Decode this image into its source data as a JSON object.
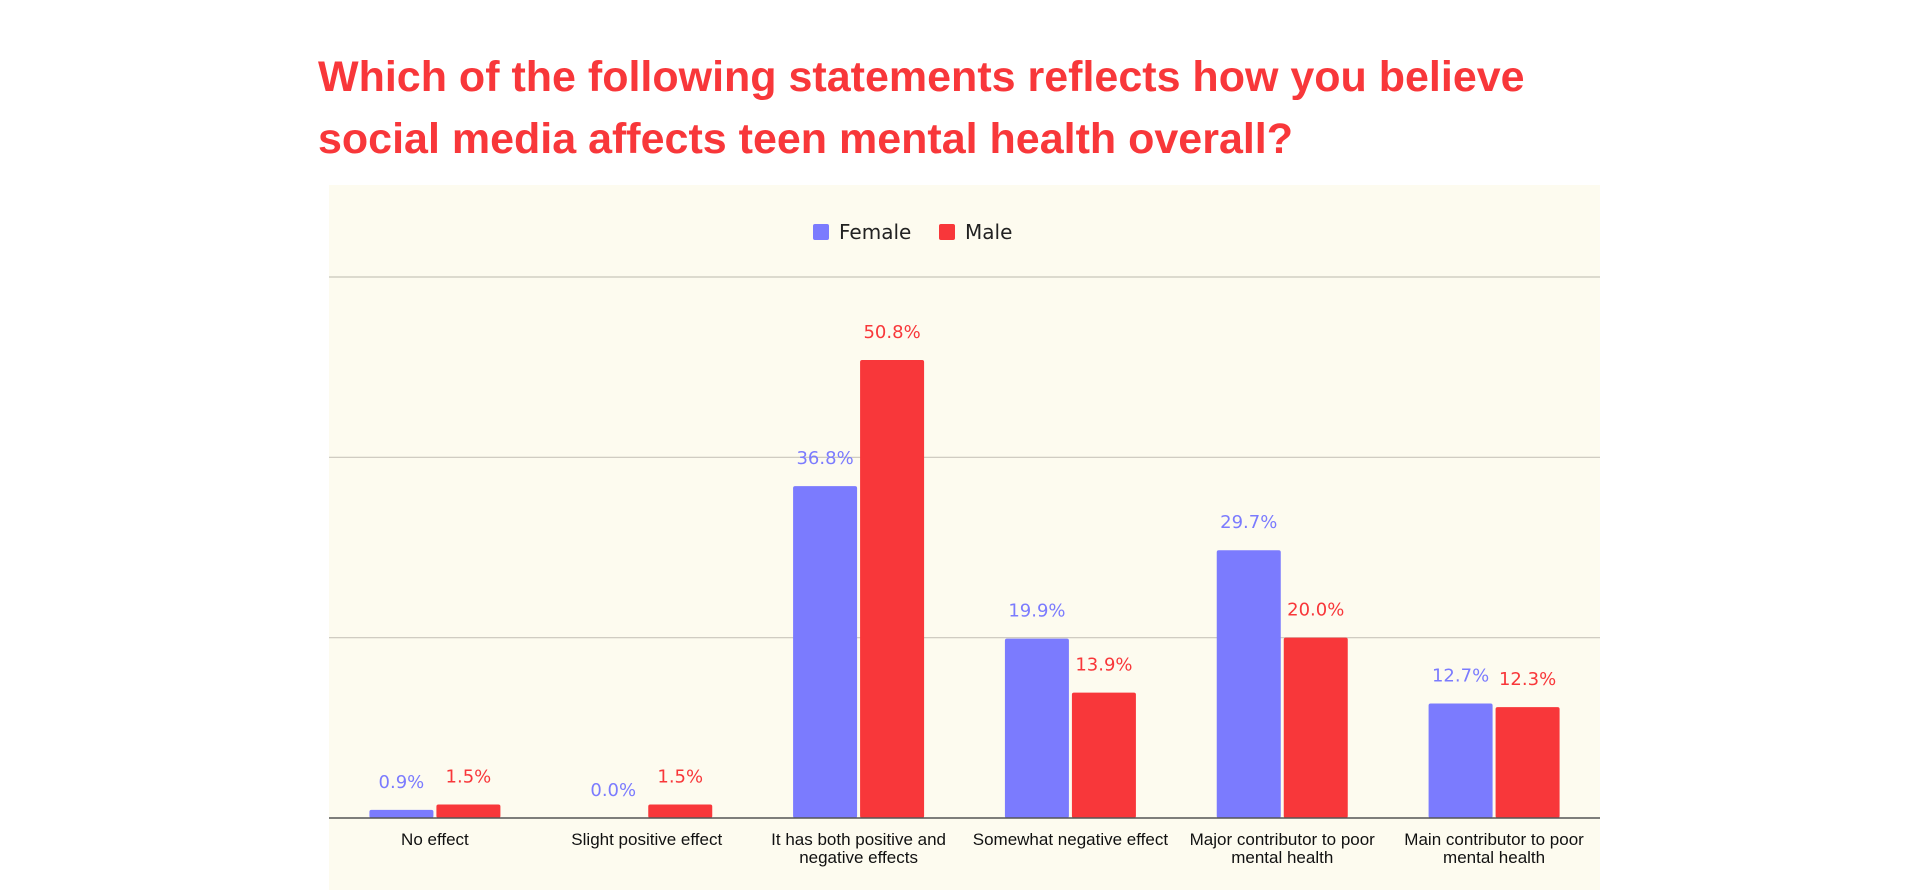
{
  "header": {
    "title_line1": "Which of the following statements reflects how you believe",
    "title_line2": "social media affects teen mental health overall?"
  },
  "chart_data": {
    "type": "bar",
    "title": "Which of the following statements reflects how you believe social media affects teen mental health overall?",
    "categories": [
      [
        "No effect"
      ],
      [
        "Slight positive effect"
      ],
      [
        "It has both positive and",
        "negative effects"
      ],
      [
        "Somewhat negative effect"
      ],
      [
        "Major contributor to poor",
        "mental health"
      ],
      [
        "Main contributor to poor",
        "mental health"
      ]
    ],
    "series": [
      {
        "name": "Female",
        "color": "#7b7bfe",
        "values": [
          0.9,
          0.0,
          36.8,
          19.9,
          29.7,
          12.7
        ],
        "labels": [
          "0.9%",
          "0.0%",
          "36.8%",
          "19.9%",
          "29.7%",
          "12.7%"
        ]
      },
      {
        "name": "Male",
        "color": "#f8373a",
        "values": [
          1.5,
          1.5,
          50.8,
          13.9,
          20.0,
          12.3
        ],
        "labels": [
          "1.5%",
          "1.5%",
          "50.8%",
          "13.9%",
          "20.0%",
          "12.3%"
        ]
      }
    ],
    "ylim": [
      0,
      60
    ],
    "gridlines": [
      20,
      40,
      60
    ],
    "grid": true,
    "legend_position": "top-center",
    "xlabel": "",
    "ylabel": ""
  }
}
